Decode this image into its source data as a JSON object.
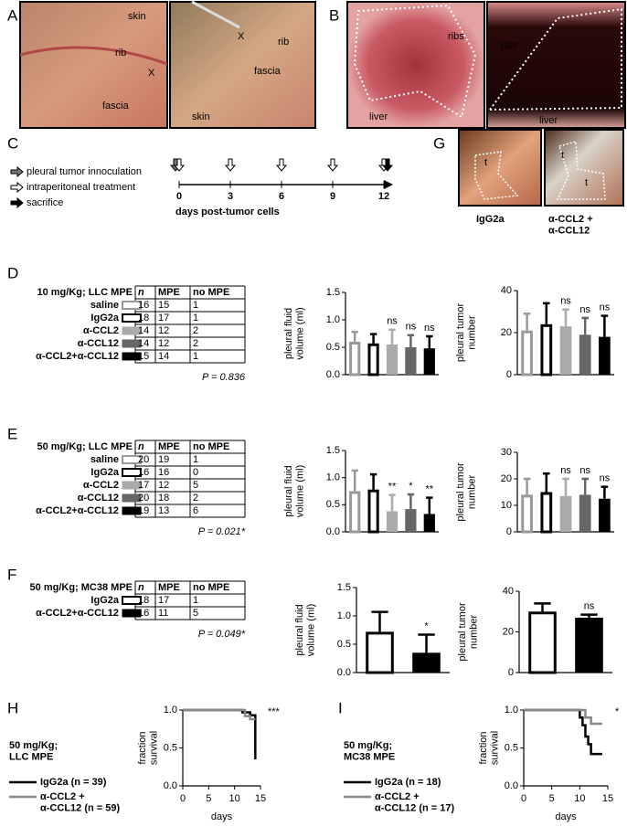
{
  "panel_labels": [
    "A",
    "B",
    "C",
    "G",
    "D",
    "E",
    "F",
    "H",
    "I"
  ],
  "panel_a": {
    "photo_1_labels": [
      "skin",
      "rib",
      "X",
      "fascia"
    ],
    "photo_2_labels": [
      "skin",
      "rib",
      "X",
      "fascia"
    ]
  },
  "panel_b": {
    "photo_1_labels": [
      "ribs",
      "liver"
    ],
    "photo_2_labels": [
      "ribs",
      "liver"
    ]
  },
  "panel_c": {
    "events": [
      {
        "label": "pleural tumor innoculation",
        "days": [
          0
        ]
      },
      {
        "label": "intraperitoneal treatment",
        "days": [
          0,
          3,
          6,
          9,
          12
        ]
      },
      {
        "label": "sacrifice",
        "days": [
          12
        ]
      }
    ],
    "xlim": [
      0,
      12
    ],
    "ticks": [
      0,
      3,
      6,
      9,
      12
    ],
    "axis_label": "days post-tumor cells"
  },
  "panel_g": {
    "photo_1_labels": [
      "t"
    ],
    "photo_2_labels": [
      "t",
      "t"
    ],
    "captions": [
      "IgG2a",
      "α-CCL2 +\nα-CCL12"
    ]
  },
  "tables": [
    {
      "title": "10 mg/Kg; LLC MPE",
      "header": [
        "n",
        "MPE",
        "no MPE"
      ],
      "rows": [
        [
          "saline",
          16,
          15,
          1
        ],
        [
          "IgG2a",
          18,
          17,
          1
        ],
        [
          "α-CCL2",
          14,
          12,
          2
        ],
        [
          "α-CCL12",
          14,
          12,
          2
        ],
        [
          "α-CCL2+α-CCL12",
          15,
          14,
          1
        ]
      ],
      "p_value": "P = 0.836"
    },
    {
      "title": "50 mg/Kg; LLC MPE",
      "header": [
        "n",
        "MPE",
        "no MPE"
      ],
      "rows": [
        [
          "saline",
          20,
          19,
          1
        ],
        [
          "IgG2a",
          16,
          16,
          0
        ],
        [
          "α-CCL2",
          17,
          12,
          5
        ],
        [
          "α-CCL12",
          20,
          18,
          2
        ],
        [
          "α-CCL2+α-CCL12",
          19,
          13,
          6
        ]
      ],
      "p_value": "P = 0.021*"
    },
    {
      "title": "50 mg/Kg; MC38 MPE",
      "header": [
        "n",
        "MPE",
        "no MPE"
      ],
      "rows": [
        [
          "IgG2a",
          18,
          17,
          1
        ],
        [
          "α-CCL2+α-CCL12",
          16,
          11,
          5
        ]
      ],
      "p_value": "P = 0.049*"
    }
  ],
  "chart_data": [
    {
      "type": "bar",
      "y_label": "pleural fluid\nvolume (ml)",
      "ylim": [
        0,
        1.5
      ],
      "yticks": [
        {
          "value": 0,
          "label": "0.0"
        },
        0.5,
        {
          "value": 1,
          "label": "1.0"
        },
        1.5
      ],
      "values": [
        0.6,
        0.57,
        0.55,
        0.5,
        0.48
      ],
      "errors": [
        0.18,
        0.17,
        0.27,
        0.22,
        0.22
      ],
      "colors": [
        "#999999",
        "#000000",
        "#aaaaaa",
        "#666666",
        "#000000"
      ],
      "hollow": [
        true,
        true,
        false,
        false,
        false
      ],
      "annotations": [
        null,
        null,
        "ns",
        "ns",
        "ns"
      ]
    },
    {
      "type": "bar",
      "y_label": "pleural tumor\nnumber",
      "ylim": [
        0,
        40
      ],
      "yticks": [
        0,
        20,
        40
      ],
      "values": [
        21,
        24,
        23,
        19,
        18
      ],
      "errors": [
        8,
        10,
        8,
        8,
        10
      ],
      "colors": [
        "#999999",
        "#000000",
        "#aaaaaa",
        "#666666",
        "#000000"
      ],
      "hollow": [
        true,
        true,
        false,
        false,
        false
      ],
      "annotations": [
        null,
        null,
        "ns",
        "ns",
        "ns"
      ]
    },
    {
      "type": "bar",
      "y_label": "pleural fluid\nvolume (ml)",
      "ylim": [
        0,
        1.5
      ],
      "yticks": [
        {
          "value": 0,
          "label": "0.0"
        },
        0.5,
        {
          "value": 1,
          "label": "1.0"
        },
        1.5
      ],
      "values": [
        0.75,
        0.78,
        0.38,
        0.42,
        0.33
      ],
      "errors": [
        0.38,
        0.28,
        0.3,
        0.27,
        0.3
      ],
      "colors": [
        "#999999",
        "#000000",
        "#aaaaaa",
        "#666666",
        "#000000"
      ],
      "hollow": [
        true,
        true,
        false,
        false,
        false
      ],
      "annotations": [
        null,
        null,
        "**",
        "*",
        "**"
      ]
    },
    {
      "type": "bar",
      "y_label": "pleural tumor\nnumber",
      "ylim": [
        0,
        30
      ],
      "yticks": [
        0,
        10,
        20,
        30
      ],
      "values": [
        14,
        15,
        13.5,
        14,
        12.5
      ],
      "errors": [
        6,
        7,
        6.5,
        6,
        4.5
      ],
      "colors": [
        "#999999",
        "#000000",
        "#aaaaaa",
        "#666666",
        "#000000"
      ],
      "hollow": [
        true,
        true,
        false,
        false,
        false
      ],
      "annotations": [
        null,
        null,
        "ns",
        "ns",
        "ns"
      ]
    },
    {
      "type": "bar",
      "y_label": "pleural fluid\nvolume (ml)",
      "ylim": [
        0,
        1.5
      ],
      "yticks": [
        {
          "value": 0,
          "label": "0.0"
        },
        0.5,
        {
          "value": 1,
          "label": "1.0"
        },
        1.5
      ],
      "values": [
        0.72,
        0.35
      ],
      "errors": [
        0.35,
        0.32
      ],
      "colors": [
        "#000000",
        "#000000"
      ],
      "hollow": [
        true,
        false
      ],
      "annotations": [
        null,
        "*"
      ]
    },
    {
      "type": "bar",
      "y_label": "pleural tumor\nnumber",
      "ylim": [
        0,
        40
      ],
      "yticks": [
        0,
        20,
        40
      ],
      "values": [
        30,
        27
      ],
      "errors": [
        4,
        1.5
      ],
      "colors": [
        "#000000",
        "#000000"
      ],
      "hollow": [
        true,
        false
      ],
      "annotations": [
        null,
        "ns"
      ]
    },
    {
      "type": "line",
      "subtitle": "50 mg/Kg;\nLLC MPE",
      "x_label": "days",
      "y_label": "fraction\nsurvival",
      "annotation": "***",
      "xlim": [
        0,
        15
      ],
      "xticks": [
        0,
        5,
        10,
        15
      ],
      "ylim": [
        0,
        1
      ],
      "yticks": [
        {
          "value": 0,
          "label": "0.0"
        },
        0.5,
        {
          "value": 1,
          "label": "1.0"
        }
      ],
      "series": [
        {
          "name": "IgG2a (n = 39)",
          "color": "#000000",
          "x": [
            0,
            11.5,
            11.5,
            13,
            13,
            14,
            14
          ],
          "values": [
            1,
            1,
            0.97,
            0.97,
            0.93,
            0.93,
            0.35
          ]
        },
        {
          "name": "α-CCL2 +\nα-CCL12 (n = 59)",
          "color": "#888888",
          "x": [
            0,
            12,
            12,
            13,
            13,
            14
          ],
          "values": [
            1,
            1,
            0.92,
            0.92,
            0.88,
            0.88
          ]
        }
      ]
    },
    {
      "type": "line",
      "subtitle": "50 mg/Kg;\nMC38 MPE",
      "x_label": "days",
      "y_label": "fraction\nsurvival",
      "annotation": "*",
      "xlim": [
        0,
        15
      ],
      "xticks": [
        0,
        5,
        10,
        15
      ],
      "ylim": [
        0,
        1
      ],
      "yticks": [
        {
          "value": 0,
          "label": "0.0"
        },
        0.5,
        {
          "value": 1,
          "label": "1.0"
        }
      ],
      "series": [
        {
          "name": "IgG2a (n = 18)",
          "color": "#000000",
          "x": [
            0,
            10,
            10,
            10.5,
            10.5,
            11,
            11,
            11.5,
            11.5,
            12,
            12,
            14
          ],
          "values": [
            1,
            1,
            0.9,
            0.9,
            0.8,
            0.8,
            0.65,
            0.65,
            0.55,
            0.55,
            0.42,
            0.42
          ]
        },
        {
          "name": "α-CCL2 +\nα-CCL12 (n = 17)",
          "color": "#888888",
          "x": [
            0,
            11,
            11,
            12,
            12,
            14
          ],
          "values": [
            1,
            1,
            0.9,
            0.9,
            0.82,
            0.82
          ]
        }
      ]
    }
  ]
}
